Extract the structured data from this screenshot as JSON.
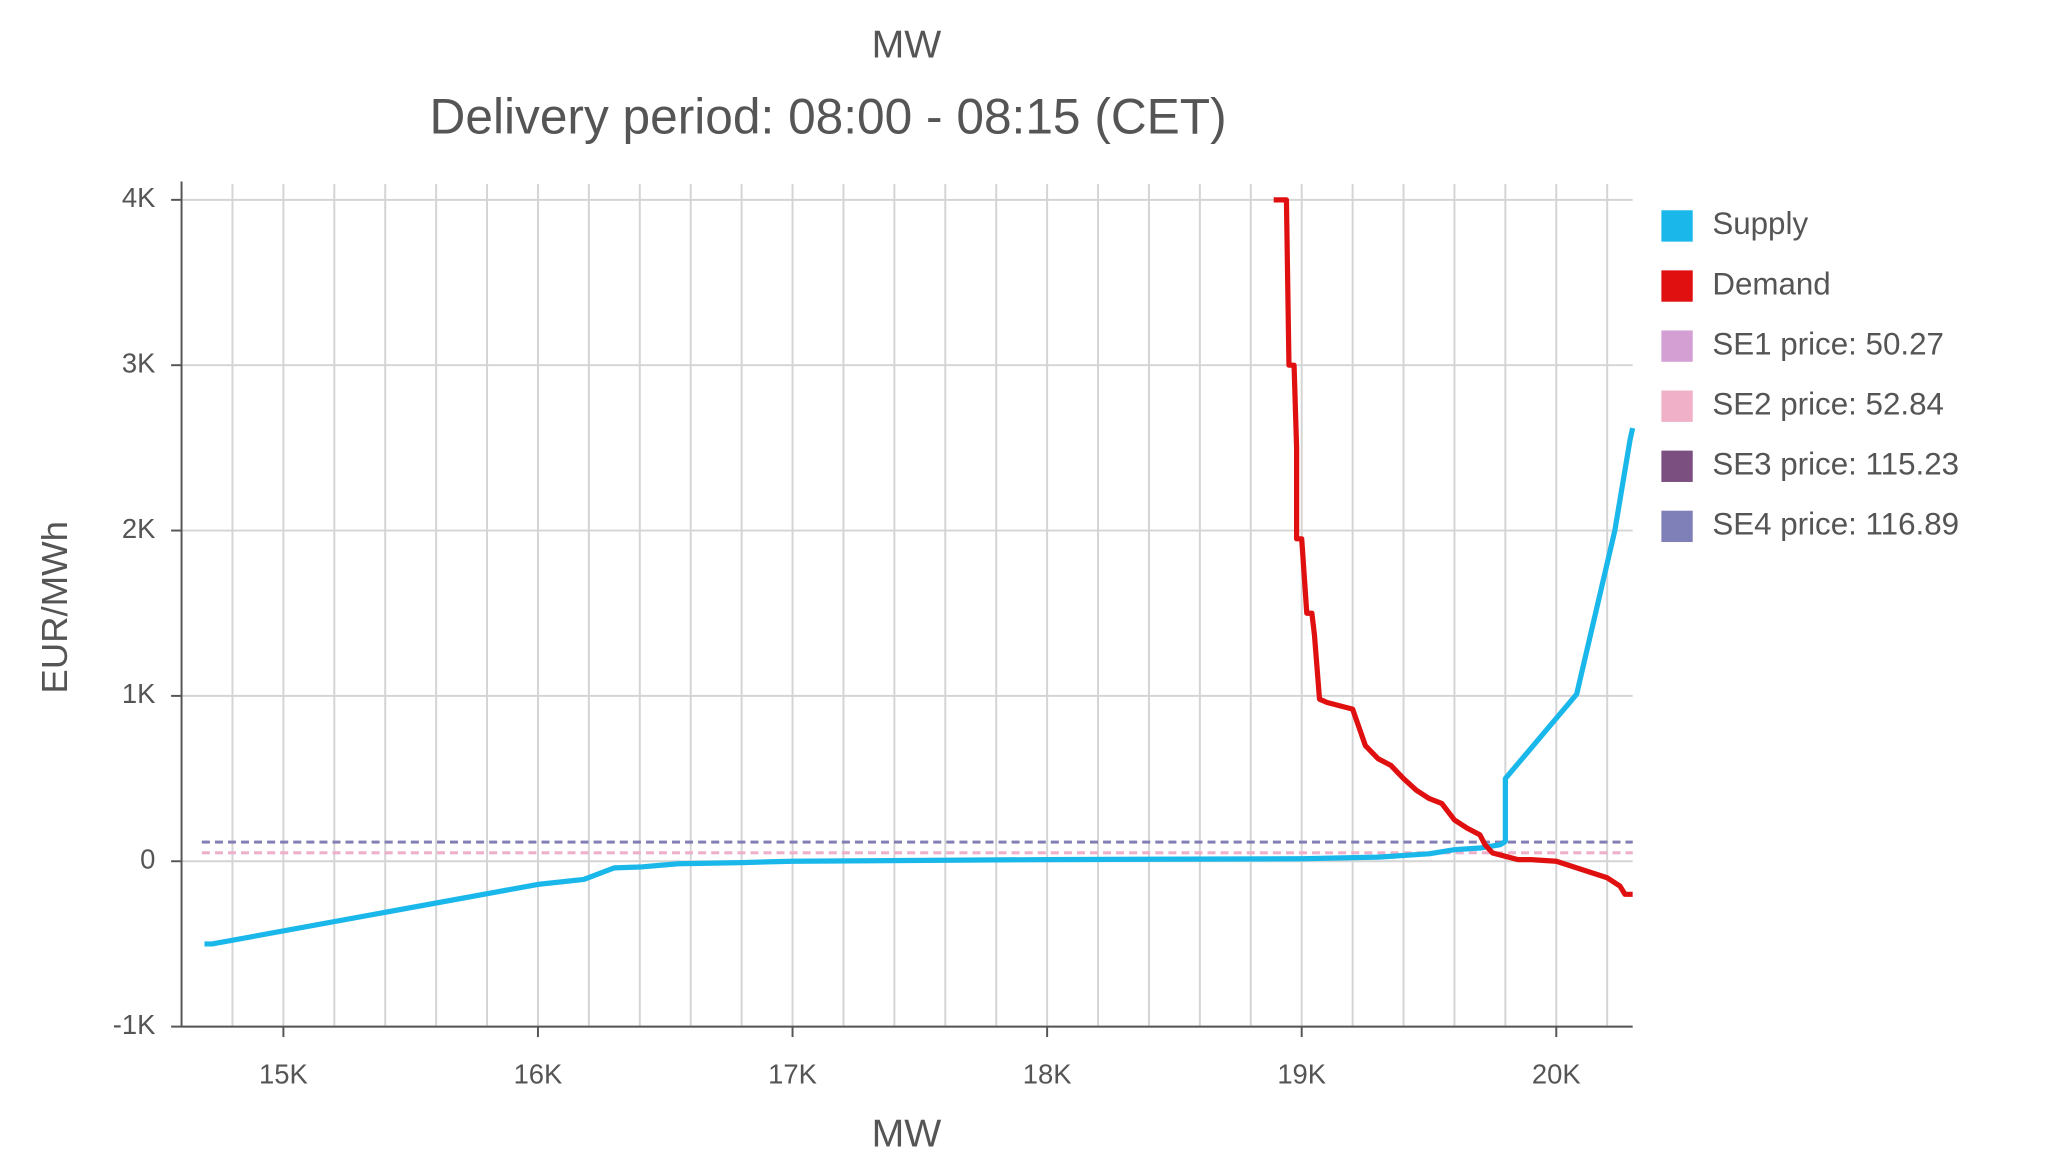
{
  "chart_data": {
    "type": "line",
    "top_label": "MW",
    "title": "Delivery period: 08:00 - 08:15 (CET)",
    "x_label": "MW",
    "y_label": "EUR/MWh",
    "xlim": [
      14600,
      20300
    ],
    "ylim": [
      -1000,
      4000
    ],
    "xticks": [
      {
        "value": 15000,
        "label": "15K"
      },
      {
        "value": 16000,
        "label": "16K"
      },
      {
        "value": 17000,
        "label": "17K"
      },
      {
        "value": 18000,
        "label": "18K"
      },
      {
        "value": 19000,
        "label": "19K"
      },
      {
        "value": 20000,
        "label": "20K"
      }
    ],
    "x_grid": [
      14800,
      15000,
      15200,
      15400,
      15600,
      15800,
      16000,
      16200,
      16400,
      16600,
      16800,
      17000,
      17200,
      17400,
      17600,
      17800,
      18000,
      18200,
      18400,
      18600,
      18800,
      19000,
      19200,
      19400,
      19600,
      19800,
      20000,
      20200
    ],
    "yticks": [
      {
        "value": 4000,
        "label": "4K"
      },
      {
        "value": 3000,
        "label": "3K"
      },
      {
        "value": 2000,
        "label": "2K"
      },
      {
        "value": 1000,
        "label": "1K"
      },
      0,
      {
        "value": -1000,
        "label": "-1K"
      }
    ],
    "grid": true,
    "legend": "right",
    "series": [
      {
        "name": "Supply",
        "color": "#1ab8ea",
        "x": [
          14690,
          14720,
          16000,
          16180,
          16300,
          16400,
          16550,
          16800,
          17000,
          18000,
          19000,
          19300,
          19500,
          19600,
          19700,
          19780,
          19800,
          19800,
          20080,
          20230,
          20290,
          20300
        ],
        "values": [
          -500,
          -500,
          -140,
          -110,
          -40,
          -35,
          -15,
          -8,
          0,
          10,
          15,
          25,
          45,
          70,
          80,
          100,
          120,
          500,
          1010,
          2000,
          2550,
          2620
        ]
      },
      {
        "name": "Demand",
        "color": "#e01010",
        "x": [
          18890,
          18940,
          18950,
          18970,
          18980,
          18980,
          19000,
          19020,
          19040,
          19050,
          19070,
          19100,
          19200,
          19250,
          19300,
          19350,
          19400,
          19450,
          19500,
          19550,
          19600,
          19650,
          19700,
          19720,
          19750,
          19800,
          19850,
          19900,
          20000,
          20100,
          20200,
          20250,
          20270,
          20300
        ],
        "values": [
          4000,
          4000,
          3000,
          3000,
          2500,
          1950,
          1950,
          1500,
          1500,
          1370,
          980,
          960,
          920,
          700,
          620,
          580,
          500,
          430,
          380,
          350,
          250,
          200,
          160,
          100,
          50,
          30,
          10,
          10,
          0,
          -50,
          -100,
          -150,
          -200,
          -200
        ]
      }
    ],
    "price_lines": [
      {
        "name": "SE1 price: 50.27",
        "value": 50.27,
        "color": "#d4a0d4"
      },
      {
        "name": "SE2 price: 52.84",
        "value": 52.84,
        "color": "#f0b0c8"
      },
      {
        "name": "SE3 price: 115.23",
        "value": 115.23,
        "color": "#7b4f80"
      },
      {
        "name": "SE4 price: 116.89",
        "value": 116.89,
        "color": "#8080b8"
      }
    ],
    "price_line_start": 14680
  }
}
